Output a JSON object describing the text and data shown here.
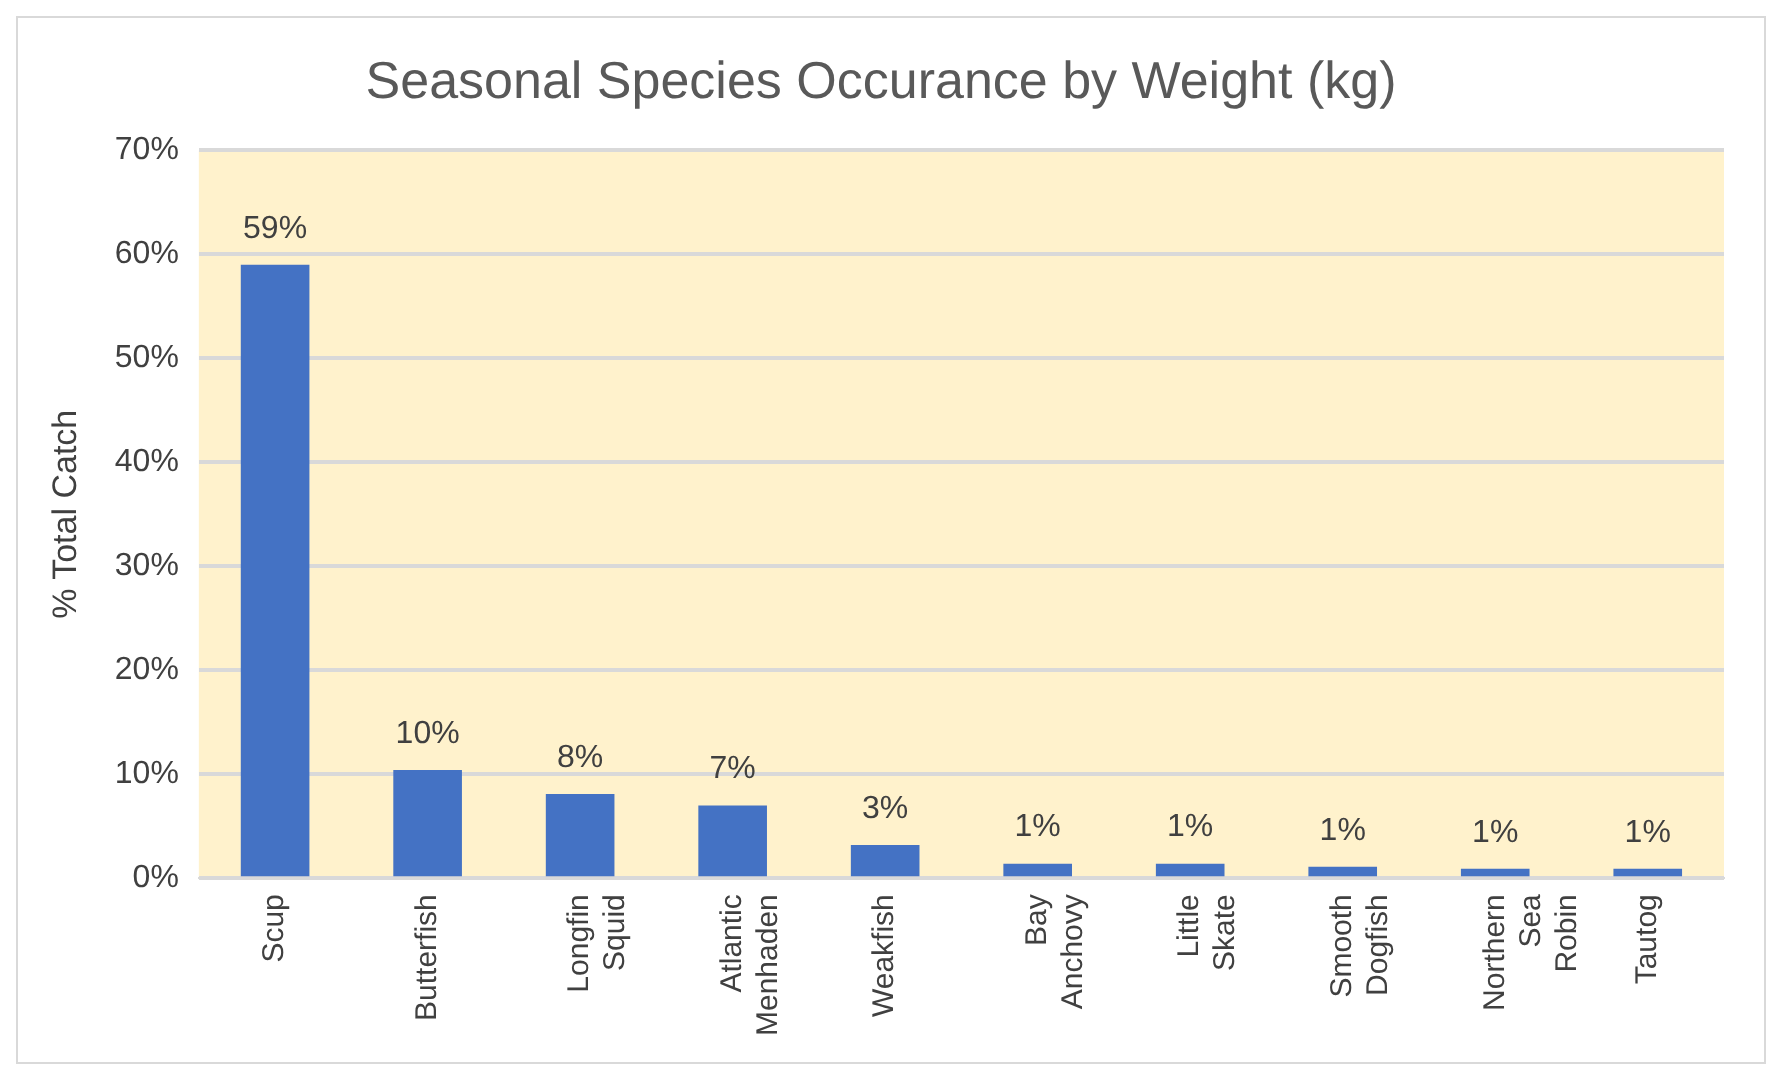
{
  "chart_data": {
    "type": "bar",
    "title": "Seasonal Species Occurance by Weight (kg)",
    "ylabel": "% Total Catch",
    "categories": [
      "Scup",
      "Butterfish",
      "Longfin Squid",
      "Atlantic Menhaden",
      "Weakfish",
      "Bay Anchovy",
      "Little Skate",
      "Smooth Dogfish",
      "Northern Sea Robin",
      "Tautog"
    ],
    "values": [
      59,
      10.4,
      8.1,
      7,
      3.2,
      1.4,
      1.4,
      1.1,
      0.9,
      0.9
    ],
    "value_labels": [
      "59%",
      "10%",
      "8%",
      "7%",
      "3%",
      "1%",
      "1%",
      "1%",
      "1%",
      "1%"
    ],
    "color": "#4472c4",
    "ylim": [
      0,
      70
    ],
    "yticks": [
      {
        "value": 0,
        "label": "0%"
      },
      {
        "value": 10,
        "label": "10%"
      },
      {
        "value": 20,
        "label": "20%"
      },
      {
        "value": 30,
        "label": "30%"
      },
      {
        "value": 40,
        "label": "40%"
      },
      {
        "value": 50,
        "label": "50%"
      },
      {
        "value": 60,
        "label": "60%"
      },
      {
        "value": 70,
        "label": "70%"
      }
    ],
    "grid": "y",
    "legend": false
  }
}
